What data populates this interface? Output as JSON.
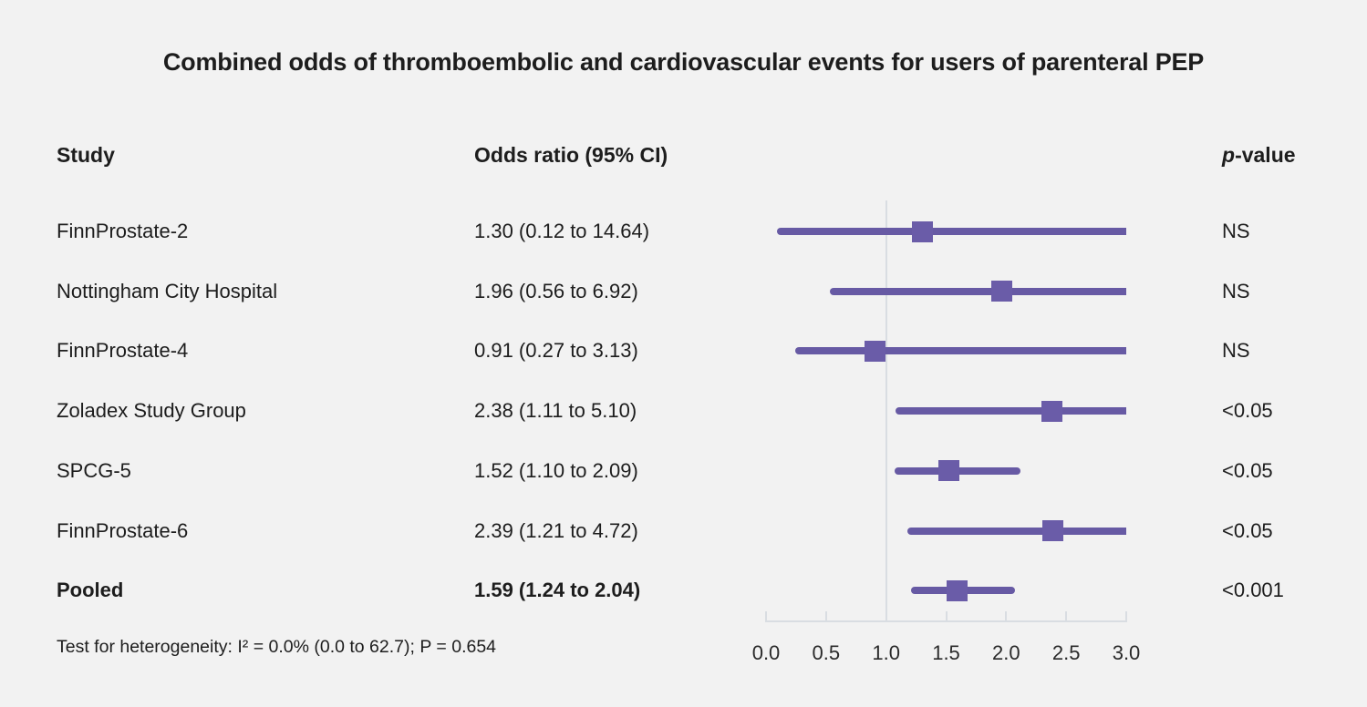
{
  "chart_data": {
    "type": "scatter",
    "variant": "forest-plot",
    "title": "Combined odds of thromboembolic and cardiovascular events for users of parenteral PEP",
    "columns": {
      "study": "Study",
      "odds_ratio": "Odds ratio (95% CI)",
      "p_head_italic": "p",
      "p_head_rest": "-value"
    },
    "rows": [
      {
        "study": "FinnProstate-2",
        "or": 1.3,
        "ci_low": 0.12,
        "ci_high": 14.64,
        "or_label": "1.30 (0.12 to 14.64)",
        "p_value": "NS",
        "emphasis": false
      },
      {
        "study": "Nottingham City Hospital",
        "or": 1.96,
        "ci_low": 0.56,
        "ci_high": 6.92,
        "or_label": "1.96 (0.56 to 6.92)",
        "p_value": "NS",
        "emphasis": false
      },
      {
        "study": "FinnProstate-4",
        "or": 0.91,
        "ci_low": 0.27,
        "ci_high": 3.13,
        "or_label": "0.91 (0.27 to 3.13)",
        "p_value": "NS",
        "emphasis": false
      },
      {
        "study": "Zoladex Study Group",
        "or": 2.38,
        "ci_low": 1.11,
        "ci_high": 5.1,
        "or_label": "2.38 (1.11 to 5.10)",
        "p_value": "<0.05",
        "emphasis": false
      },
      {
        "study": "SPCG-5",
        "or": 1.52,
        "ci_low": 1.1,
        "ci_high": 2.09,
        "or_label": "1.52 (1.10 to 2.09)",
        "p_value": "<0.05",
        "emphasis": false
      },
      {
        "study": "FinnProstate-6",
        "or": 2.39,
        "ci_low": 1.21,
        "ci_high": 4.72,
        "or_label": "2.39 (1.21 to 4.72)",
        "p_value": "<0.05",
        "emphasis": false
      },
      {
        "study": "Pooled",
        "or": 1.59,
        "ci_low": 1.24,
        "ci_high": 2.04,
        "or_label": "1.59 (1.24 to 2.04)",
        "p_value": "<0.001",
        "emphasis": true
      }
    ],
    "x_axis": {
      "range": [
        0.0,
        3.0
      ],
      "tick_labels": [
        "0.0",
        "0.5",
        "1.0",
        "1.5",
        "2.0",
        "2.5",
        "3.0"
      ],
      "reference_line_x": 1.0,
      "grid": false
    },
    "legend": null,
    "footnote": "Test for heterogeneity: I² = 0.0% (0.0 to 62.7); P = 0.654"
  },
  "colors": {
    "ci_line": "#675aa4",
    "marker": "#6a5ca8",
    "reference_line": "#d9dde2",
    "axis": "#d9dde2",
    "background": "#f2f2f2",
    "text": "#1d1d1d"
  }
}
